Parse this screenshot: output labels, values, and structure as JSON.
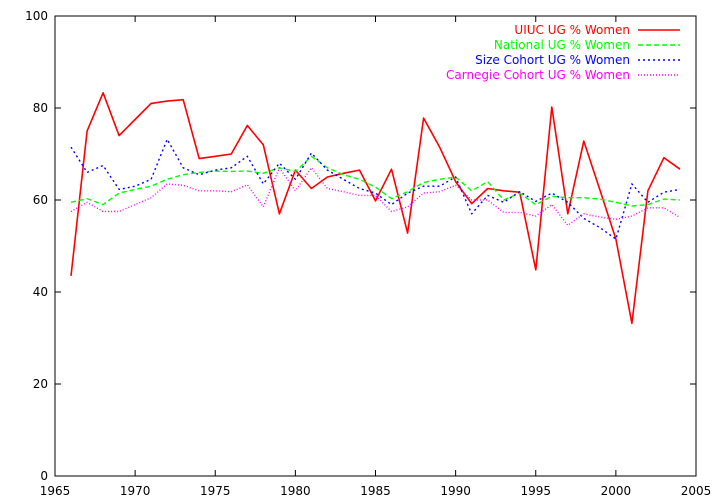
{
  "chart_data": {
    "type": "line",
    "title": "",
    "xlabel": "",
    "ylabel": "",
    "xlim": [
      1965,
      2005
    ],
    "ylim": [
      0,
      100
    ],
    "x_ticks": [
      1965,
      1970,
      1975,
      1980,
      1985,
      1990,
      1995,
      2000,
      2005
    ],
    "y_ticks": [
      0,
      20,
      40,
      60,
      80,
      100
    ],
    "grid": false,
    "legend_position": "top-right",
    "x": [
      1966,
      1967,
      1968,
      1969,
      1970,
      1971,
      1972,
      1973,
      1974,
      1975,
      1976,
      1977,
      1978,
      1979,
      1980,
      1981,
      1982,
      1983,
      1984,
      1985,
      1986,
      1987,
      1988,
      1989,
      1990,
      1991,
      1992,
      1993,
      1994,
      1995,
      1996,
      1997,
      1998,
      1999,
      2000,
      2001,
      2002,
      2003,
      2004
    ],
    "series": [
      {
        "name": "UIUC UG % Women",
        "color": "#ff0000",
        "dash": "solid",
        "values": [
          43.5,
          75,
          83.3,
          74,
          77.5,
          81,
          81.5,
          81.8,
          69,
          69.5,
          70,
          76.2,
          72,
          57,
          66.5,
          62.5,
          65,
          65.8,
          66.5,
          59.8,
          66.7,
          52.8,
          77.8,
          71.5,
          64,
          59.2,
          62.5,
          62,
          61.7,
          44.8,
          80.2,
          57,
          72.8,
          62.2,
          51.5,
          33.2,
          62,
          69.2,
          66.7
        ]
      },
      {
        "name": "National UG % Women",
        "color": "#00ff00",
        "dash": "dashed",
        "values": [
          59.5,
          60.3,
          59,
          61.5,
          62.3,
          63,
          64.5,
          65.5,
          66,
          66.3,
          66.2,
          66.3,
          65.8,
          67,
          66.2,
          69.5,
          67,
          65.5,
          64.5,
          62.8,
          60.3,
          61.8,
          63.8,
          64.5,
          65,
          62,
          64,
          60,
          61.5,
          59,
          60.8,
          60.5,
          60.5,
          60.2,
          59.5,
          58.7,
          59,
          60.2,
          60
        ]
      },
      {
        "name": "Size Cohort UG % Women",
        "color": "#0000ff",
        "dash": "dotted",
        "values": [
          71.5,
          66,
          67.5,
          62.3,
          63,
          64.5,
          73.2,
          67,
          65.5,
          66.5,
          67,
          69.5,
          63.5,
          68,
          64.5,
          70.2,
          66.5,
          64.5,
          62.5,
          61.5,
          59,
          61.5,
          63,
          63,
          65,
          57,
          61,
          59.5,
          61.8,
          59.7,
          61.5,
          59.5,
          56,
          54,
          51.5,
          63.5,
          59.5,
          61.7,
          62.3
        ]
      },
      {
        "name": "Carnegie Cohort UG % Women",
        "color": "#ff00ff",
        "dash": "dotted-fine",
        "values": [
          57.5,
          59.5,
          57.5,
          57.5,
          59,
          60.5,
          63.5,
          63.2,
          62,
          62,
          61.8,
          63.3,
          58.5,
          67,
          62,
          67,
          62.5,
          61.8,
          61,
          61,
          57.5,
          58.5,
          61.5,
          61.8,
          63.2,
          60,
          60,
          57.3,
          57.3,
          56.5,
          59,
          54.5,
          57,
          56.3,
          55.8,
          56.5,
          58.3,
          58.3,
          56.2
        ]
      }
    ]
  }
}
